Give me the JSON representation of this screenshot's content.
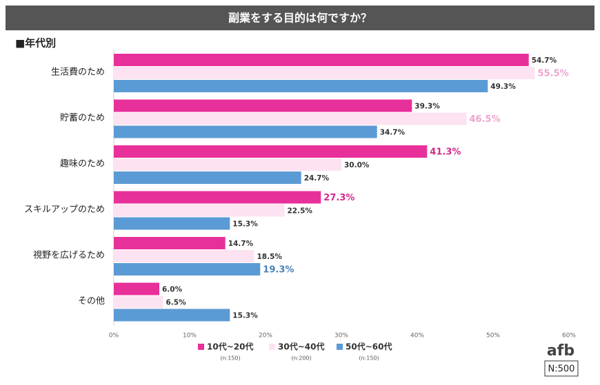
{
  "chart_data": {
    "type": "hbar",
    "title": "副業をする目的は何ですか？",
    "subtitle": "■年代別",
    "categories": [
      "生活費のため",
      "貯蓄のため",
      "趣味のため",
      "スキルアップのため",
      "視野を広げるため",
      "その他"
    ],
    "series": [
      {
        "name": "10代~20代",
        "sample": "(n:150)",
        "color": "#e8309a",
        "highlight_color": "#d42a8c",
        "values": [
          54.7,
          39.3,
          41.3,
          27.3,
          14.7,
          6.0
        ],
        "value_labels": [
          "54.7%",
          "39.3%",
          "41.3%",
          "27.3%",
          "14.7%",
          "6.0%"
        ],
        "highlight": [
          false,
          false,
          true,
          true,
          false,
          false
        ]
      },
      {
        "name": "30代~40代",
        "sample": "(n:200)",
        "color": "#fde3f1",
        "highlight_color": "#f0a3cf",
        "values": [
          55.5,
          46.5,
          30.0,
          22.5,
          18.5,
          6.5
        ],
        "value_labels": [
          "55.5%",
          "46.5%",
          "30.0%",
          "22.5%",
          "18.5%",
          "6.5%"
        ],
        "highlight": [
          true,
          true,
          false,
          false,
          false,
          false
        ]
      },
      {
        "name": "50代~60代",
        "sample": "(n:150)",
        "color": "#5b9bd5",
        "highlight_color": "#4a80b6",
        "values": [
          49.3,
          34.7,
          24.7,
          15.3,
          19.3,
          15.3
        ],
        "value_labels": [
          "49.3%",
          "34.7%",
          "24.7%",
          "15.3%",
          "19.3%",
          "15.3%"
        ],
        "highlight": [
          false,
          false,
          false,
          false,
          true,
          false
        ]
      }
    ],
    "xlim": [
      0,
      60
    ],
    "xticks": [
      {
        "value": 0,
        "label": "0%"
      },
      {
        "value": 10,
        "label": "10%"
      },
      {
        "value": 20,
        "label": "20%"
      },
      {
        "value": 30,
        "label": "30%"
      },
      {
        "value": 40,
        "label": "40%"
      },
      {
        "value": 50,
        "label": "50%"
      },
      {
        "value": 60,
        "label": "60%"
      }
    ],
    "grid": false,
    "logo": "afb",
    "total": "N:500"
  }
}
